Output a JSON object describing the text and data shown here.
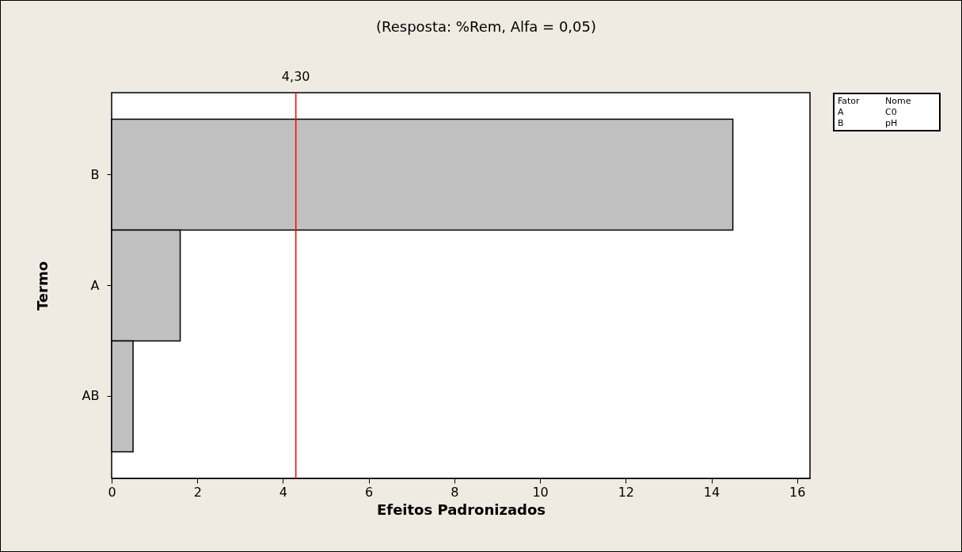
{
  "chart_data": {
    "type": "bar",
    "orientation": "horizontal",
    "title": "(Resposta: %Rem, Alfa = 0,05)",
    "xlabel": "Efeitos Padronizados",
    "ylabel": "Termo",
    "categories": [
      "B",
      "A",
      "AB"
    ],
    "values": [
      14.5,
      1.6,
      0.5
    ],
    "color": "#c0c0c0",
    "xlim": [
      0,
      16.3
    ],
    "xticks": [
      0,
      2,
      4,
      6,
      8,
      10,
      12,
      14,
      16
    ],
    "grid": false,
    "ref_lines": [
      {
        "axis": "x",
        "value": 4.3,
        "label": "4,30",
        "color": "#ff0000"
      }
    ],
    "annotations": [
      "Fator",
      "Nome",
      "A",
      "C0",
      "B",
      "pH"
    ]
  }
}
